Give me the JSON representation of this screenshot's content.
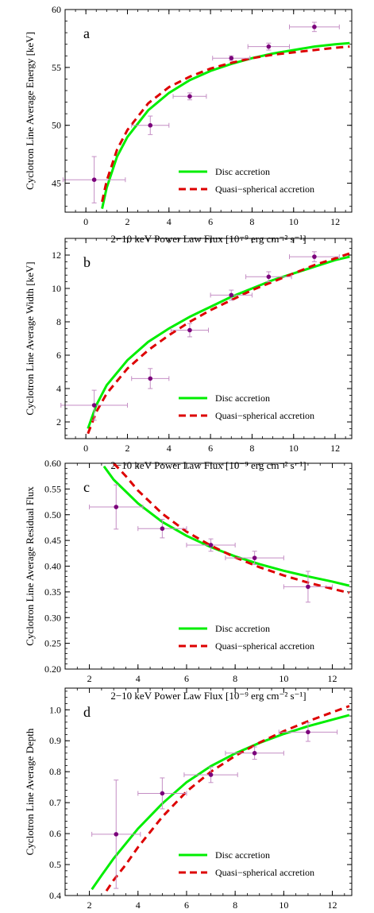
{
  "colors": {
    "disc": "#00ee00",
    "quasi": "#dd0000",
    "points": "#7b007b",
    "errorbars": "#c48ec4",
    "frame": "#000000"
  },
  "chart_data": [
    {
      "type": "scatter",
      "panel_label": "a",
      "xlabel": "2−10 keV Power Law Flux [10⁻⁹ erg cm⁻² s⁻¹]",
      "ylabel": "Cyclotron Line Average Energy [keV]",
      "xlim": [
        -1,
        12.8
      ],
      "ylim": [
        42.5,
        60
      ],
      "xticks": [
        "0",
        "2",
        "4",
        "6",
        "8",
        "10",
        "12"
      ],
      "yticks": [
        "45",
        "50",
        "55",
        "60"
      ],
      "legend_position": "bottom-right",
      "series": [
        {
          "name": "Disc accretion",
          "kind": "line",
          "style": "solid",
          "x": [
            0.78,
            1,
            1.5,
            2,
            3,
            4,
            5,
            6,
            7,
            8,
            9,
            10,
            11,
            12,
            12.7
          ],
          "y": [
            42.8,
            44.6,
            47.3,
            49.0,
            51.3,
            52.8,
            53.9,
            54.7,
            55.3,
            55.8,
            56.2,
            56.5,
            56.8,
            57.0,
            57.1
          ]
        },
        {
          "name": "Quasi−spherical accretion",
          "kind": "line",
          "style": "dashed",
          "x": [
            0.78,
            1,
            1.5,
            2,
            3,
            4,
            5,
            6,
            7,
            8,
            9,
            10,
            11,
            12,
            12.7
          ],
          "y": [
            43.4,
            45.2,
            47.9,
            49.6,
            51.9,
            53.3,
            54.2,
            54.9,
            55.4,
            55.8,
            56.1,
            56.3,
            56.5,
            56.7,
            56.8
          ]
        },
        {
          "name": "",
          "kind": "points",
          "x": [
            0.4,
            3.1,
            5.0,
            7.0,
            8.8,
            11.0
          ],
          "y": [
            45.3,
            50.0,
            52.5,
            55.8,
            56.8,
            58.5
          ],
          "xerr": [
            1.5,
            0.9,
            0.8,
            0.9,
            1.0,
            1.2
          ],
          "yerr": [
            2.0,
            0.8,
            0.3,
            0.2,
            0.3,
            0.4
          ]
        }
      ]
    },
    {
      "type": "scatter",
      "panel_label": "b",
      "xlabel": "2−10 keV Power Law Flux [10⁻⁹ erg cm⁻² s⁻¹]",
      "ylabel": "Cyclotron Line Average Width [keV]",
      "xlim": [
        -1,
        12.8
      ],
      "ylim": [
        1,
        13
      ],
      "xticks": [
        "0",
        "2",
        "4",
        "6",
        "8",
        "10",
        "12"
      ],
      "yticks": [
        "2",
        "4",
        "6",
        "8",
        "10",
        "12"
      ],
      "legend_position": "bottom-right",
      "series": [
        {
          "name": "Disc accretion",
          "kind": "line",
          "style": "solid",
          "x": [
            0.1,
            0.5,
            1,
            2,
            3,
            4,
            5,
            6,
            7,
            8,
            9,
            10,
            11,
            12,
            12.7
          ],
          "y": [
            1.6,
            3.0,
            4.2,
            5.7,
            6.8,
            7.6,
            8.3,
            8.9,
            9.5,
            10.0,
            10.5,
            10.9,
            11.3,
            11.7,
            11.9
          ]
        },
        {
          "name": "Quasi−spherical accretion",
          "kind": "line",
          "style": "dashed",
          "x": [
            0.1,
            0.5,
            1,
            2,
            3,
            4,
            5,
            6,
            7,
            8,
            9,
            10,
            11,
            12,
            12.7
          ],
          "y": [
            1.3,
            2.6,
            3.7,
            5.2,
            6.3,
            7.2,
            8.0,
            8.7,
            9.3,
            9.9,
            10.4,
            10.9,
            11.4,
            11.8,
            12.1
          ]
        },
        {
          "name": "",
          "kind": "points",
          "x": [
            0.4,
            3.1,
            5.0,
            7.0,
            8.8,
            11.0
          ],
          "y": [
            3.0,
            4.6,
            7.5,
            9.6,
            10.7,
            11.9
          ],
          "xerr": [
            1.6,
            0.9,
            0.9,
            1.0,
            1.1,
            1.2
          ],
          "yerr": [
            0.9,
            0.6,
            0.4,
            0.3,
            0.3,
            0.3
          ]
        }
      ]
    },
    {
      "type": "scatter",
      "panel_label": "c",
      "xlabel": "2−10 keV Power Law Flux [10⁻⁹ erg cm⁻² s⁻¹]",
      "ylabel": "Cyclotron Line Average Residual Flux",
      "xlim": [
        1,
        12.8
      ],
      "ylim": [
        0.2,
        0.6
      ],
      "xticks": [
        "2",
        "4",
        "6",
        "8",
        "10",
        "12"
      ],
      "yticks": [
        "0.20",
        "0.25",
        "0.30",
        "0.35",
        "0.40",
        "0.45",
        "0.50",
        "0.55",
        "0.60"
      ],
      "legend_position": "bottom-right",
      "series": [
        {
          "name": "Disc accretion",
          "kind": "line",
          "style": "solid",
          "x": [
            2.6,
            3,
            4,
            5,
            6,
            7,
            8,
            9,
            10,
            11,
            12,
            12.7
          ],
          "y": [
            0.594,
            0.568,
            0.522,
            0.486,
            0.459,
            0.437,
            0.419,
            0.404,
            0.391,
            0.38,
            0.37,
            0.362
          ]
        },
        {
          "name": "Quasi−spherical accretion",
          "kind": "line",
          "style": "dashed",
          "x": [
            3.0,
            3.5,
            4,
            5,
            6,
            7,
            8,
            9,
            10,
            11,
            12,
            12.7
          ],
          "y": [
            0.6,
            0.575,
            0.547,
            0.502,
            0.467,
            0.44,
            0.417,
            0.398,
            0.382,
            0.368,
            0.356,
            0.348
          ]
        },
        {
          "name": "",
          "kind": "points",
          "x": [
            3.1,
            5.0,
            7.0,
            8.8,
            11.0
          ],
          "y": [
            0.515,
            0.473,
            0.441,
            0.416,
            0.36
          ],
          "xerr": [
            1.1,
            1.0,
            1.0,
            1.2,
            1.0
          ],
          "yerr": [
            0.043,
            0.018,
            0.012,
            0.013,
            0.03
          ]
        }
      ]
    },
    {
      "type": "scatter",
      "panel_label": "d",
      "xlabel": "2−10 keV Power Law Flux [10⁻⁹ erg cm⁻² s⁻¹]",
      "ylabel": "Cyclotron Line Average Depth",
      "xlim": [
        1,
        12.8
      ],
      "ylim": [
        0.4,
        1.07
      ],
      "xticks": [
        "2",
        "4",
        "6",
        "8",
        "10",
        "12"
      ],
      "yticks": [
        "0.4",
        "0.5",
        "0.6",
        "0.7",
        "0.8",
        "0.9",
        "1.0"
      ],
      "legend_position": "bottom-right",
      "series": [
        {
          "name": "Disc accretion",
          "kind": "line",
          "style": "solid",
          "x": [
            2.1,
            2.5,
            3,
            4,
            5,
            6,
            7,
            8,
            9,
            10,
            11,
            12,
            12.7
          ],
          "y": [
            0.42,
            0.465,
            0.52,
            0.616,
            0.697,
            0.766,
            0.818,
            0.859,
            0.893,
            0.922,
            0.947,
            0.968,
            0.983
          ]
        },
        {
          "name": "Quasi−spherical accretion",
          "kind": "line",
          "style": "dashed",
          "x": [
            2.7,
            3,
            3.5,
            4,
            5,
            6,
            7,
            8,
            9,
            10,
            11,
            12,
            12.7
          ],
          "y": [
            0.415,
            0.45,
            0.5,
            0.556,
            0.654,
            0.736,
            0.8,
            0.851,
            0.894,
            0.931,
            0.963,
            0.992,
            1.012
          ]
        },
        {
          "name": "",
          "kind": "points",
          "x": [
            3.1,
            5.0,
            7.0,
            8.8,
            11.0
          ],
          "y": [
            0.598,
            0.73,
            0.79,
            0.86,
            0.928
          ],
          "xerr": [
            1.0,
            1.0,
            1.1,
            1.2,
            1.2
          ],
          "yerr": [
            0.175,
            0.05,
            0.025,
            0.02,
            0.03
          ]
        }
      ]
    }
  ]
}
